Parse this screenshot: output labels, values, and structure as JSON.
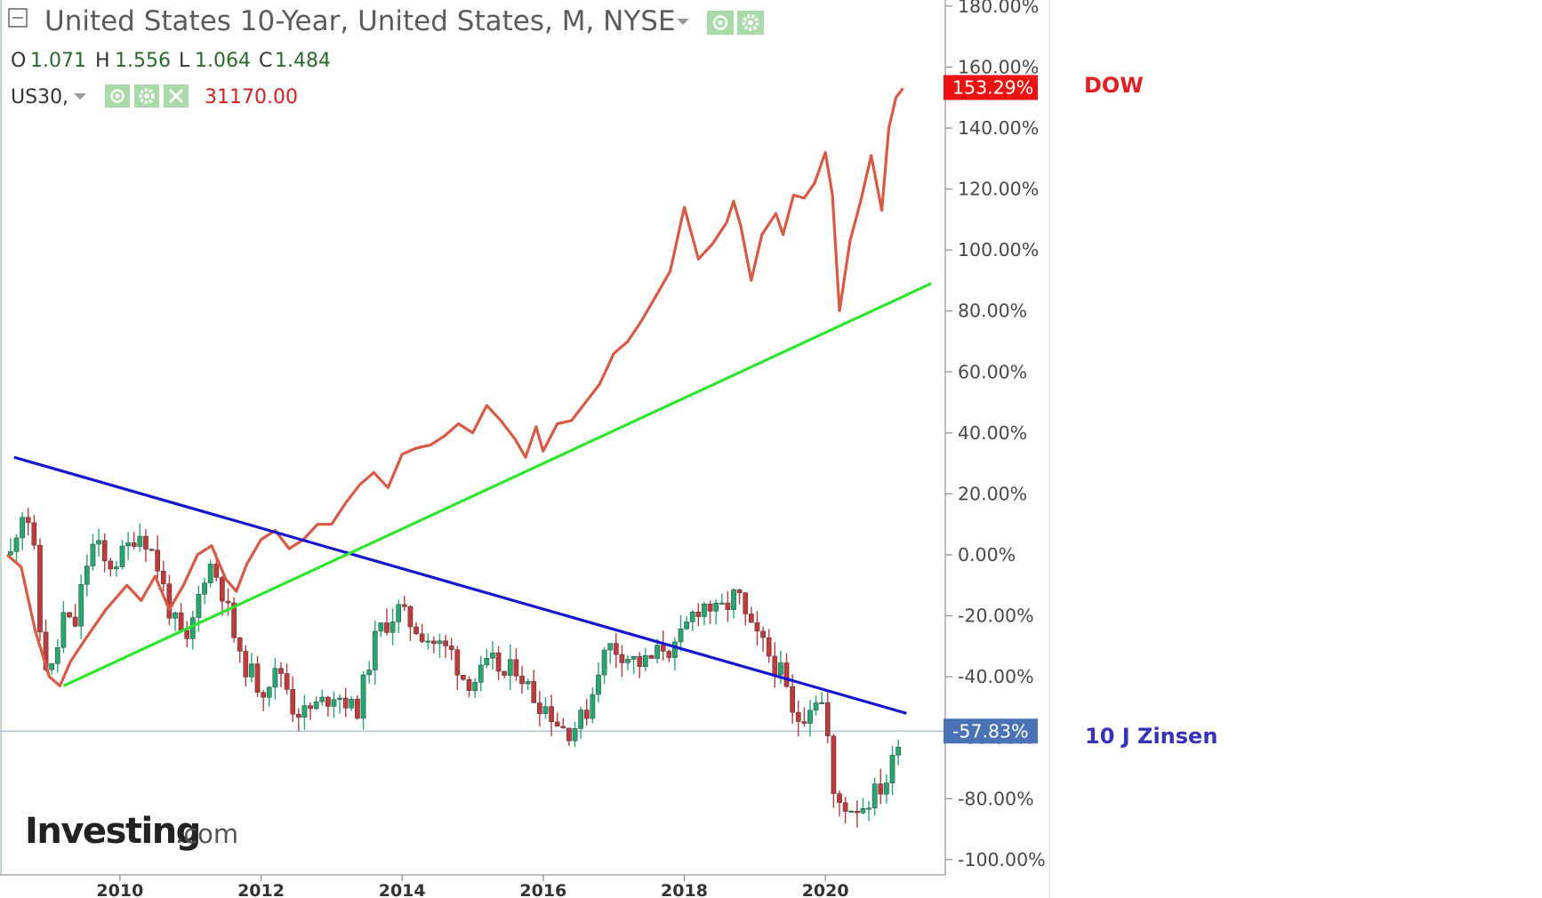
{
  "header": {
    "title": "United States 10-Year, United States, M, NYSE",
    "ohlc": [
      {
        "key": "O",
        "value": "1.071"
      },
      {
        "key": "H",
        "value": "1.556"
      },
      {
        "key": "L",
        "value": "1.064"
      },
      {
        "key": "C",
        "value": "1.484"
      }
    ],
    "overlay_symbol": "US30,",
    "overlay_value": "31170.00"
  },
  "annotations": {
    "dow_label": "DOW",
    "zinsen_label": "10 J Zinsen"
  },
  "logo": {
    "main": "Investing",
    "suffix": ".com"
  },
  "colors": {
    "dow_line": "#d85a44",
    "candle_up": "#24a870",
    "candle_down": "#c0393b",
    "trend_blue": "#1515d2",
    "trend_green": "#2be62b",
    "badge_red": "#ee1111",
    "badge_blue": "#4a73b6",
    "dow_label": "#e02020",
    "zinsen_label": "#3333bb"
  },
  "chart_data": {
    "type": "line",
    "ylabel": "",
    "ylim": [
      -105,
      182
    ],
    "yticks": [
      "180.00%",
      "160.00%",
      "140.00%",
      "120.00%",
      "100.00%",
      "80.00%",
      "60.00%",
      "40.00%",
      "20.00%",
      "0.00%",
      "-20.00%",
      "-40.00%",
      "-60.00%",
      "-80.00%",
      "-100.00%"
    ],
    "ytick_values": [
      180,
      160,
      140,
      120,
      100,
      80,
      60,
      40,
      20,
      0,
      -20,
      -40,
      -60,
      -80,
      -100
    ],
    "xlim": [
      2008.3,
      2021.7
    ],
    "xticks": [
      "2010",
      "2012",
      "2014",
      "2016",
      "2018",
      "2020"
    ],
    "xtick_values": [
      2010,
      2012,
      2014,
      2016,
      2018,
      2020
    ],
    "grid": false,
    "series": [
      {
        "name": "US30,",
        "kind": "line",
        "points": [
          [
            2008.4,
            0
          ],
          [
            2008.6,
            -4
          ],
          [
            2008.8,
            -25
          ],
          [
            2009.0,
            -40
          ],
          [
            2009.15,
            -43
          ],
          [
            2009.3,
            -35
          ],
          [
            2009.5,
            -28
          ],
          [
            2009.8,
            -18
          ],
          [
            2010.1,
            -10
          ],
          [
            2010.3,
            -15
          ],
          [
            2010.5,
            -7
          ],
          [
            2010.7,
            -18
          ],
          [
            2010.9,
            -10
          ],
          [
            2011.1,
            0
          ],
          [
            2011.3,
            3
          ],
          [
            2011.5,
            -8
          ],
          [
            2011.65,
            -12
          ],
          [
            2011.8,
            -3
          ],
          [
            2012.0,
            5
          ],
          [
            2012.2,
            8
          ],
          [
            2012.4,
            2
          ],
          [
            2012.6,
            5
          ],
          [
            2012.8,
            10
          ],
          [
            2013.0,
            10
          ],
          [
            2013.2,
            17
          ],
          [
            2013.4,
            23
          ],
          [
            2013.6,
            27
          ],
          [
            2013.8,
            22
          ],
          [
            2014.0,
            33
          ],
          [
            2014.2,
            35
          ],
          [
            2014.4,
            36
          ],
          [
            2014.6,
            39
          ],
          [
            2014.8,
            43
          ],
          [
            2015.0,
            40
          ],
          [
            2015.2,
            49
          ],
          [
            2015.4,
            44
          ],
          [
            2015.6,
            38
          ],
          [
            2015.75,
            32
          ],
          [
            2015.9,
            42
          ],
          [
            2016.0,
            34
          ],
          [
            2016.2,
            43
          ],
          [
            2016.4,
            44
          ],
          [
            2016.6,
            50
          ],
          [
            2016.8,
            56
          ],
          [
            2017.0,
            66
          ],
          [
            2017.2,
            70
          ],
          [
            2017.4,
            77
          ],
          [
            2017.6,
            85
          ],
          [
            2017.8,
            93
          ],
          [
            2018.0,
            114
          ],
          [
            2018.2,
            97
          ],
          [
            2018.4,
            102
          ],
          [
            2018.6,
            109
          ],
          [
            2018.7,
            116
          ],
          [
            2018.8,
            108
          ],
          [
            2018.95,
            90
          ],
          [
            2019.1,
            105
          ],
          [
            2019.3,
            112
          ],
          [
            2019.4,
            105
          ],
          [
            2019.55,
            118
          ],
          [
            2019.7,
            117
          ],
          [
            2019.85,
            122
          ],
          [
            2020.0,
            132
          ],
          [
            2020.1,
            118
          ],
          [
            2020.2,
            80
          ],
          [
            2020.35,
            103
          ],
          [
            2020.5,
            116
          ],
          [
            2020.65,
            131
          ],
          [
            2020.8,
            113
          ],
          [
            2020.9,
            140
          ],
          [
            2021.0,
            150
          ],
          [
            2021.1,
            153
          ]
        ],
        "last_label": "153.29%"
      },
      {
        "name": "United States 10-Year, United States, M, NYSE",
        "kind": "candlestick",
        "points": [
          [
            2008.45,
            0
          ],
          [
            2008.6,
            15
          ],
          [
            2008.75,
            10
          ],
          [
            2008.9,
            -35
          ],
          [
            2009.05,
            -38
          ],
          [
            2009.2,
            -20
          ],
          [
            2009.35,
            -25
          ],
          [
            2009.5,
            -5
          ],
          [
            2009.65,
            5
          ],
          [
            2009.8,
            -4
          ],
          [
            2009.95,
            -2
          ],
          [
            2010.1,
            2
          ],
          [
            2010.25,
            8
          ],
          [
            2010.4,
            4
          ],
          [
            2010.55,
            -5
          ],
          [
            2010.7,
            -18
          ],
          [
            2010.85,
            -26
          ],
          [
            2010.95,
            -30
          ],
          [
            2011.1,
            -15
          ],
          [
            2011.25,
            -2
          ],
          [
            2011.4,
            -8
          ],
          [
            2011.55,
            -20
          ],
          [
            2011.7,
            -35
          ],
          [
            2011.85,
            -38
          ],
          [
            2012.0,
            -45
          ],
          [
            2012.15,
            -40
          ],
          [
            2012.3,
            -38
          ],
          [
            2012.45,
            -50
          ],
          [
            2012.6,
            -52
          ],
          [
            2012.75,
            -50
          ],
          [
            2012.9,
            -48
          ],
          [
            2013.05,
            -45
          ],
          [
            2013.2,
            -48
          ],
          [
            2013.35,
            -52
          ],
          [
            2013.5,
            -38
          ],
          [
            2013.65,
            -25
          ],
          [
            2013.8,
            -22
          ],
          [
            2013.95,
            -18
          ],
          [
            2014.1,
            -22
          ],
          [
            2014.25,
            -25
          ],
          [
            2014.4,
            -28
          ],
          [
            2014.55,
            -30
          ],
          [
            2014.7,
            -32
          ],
          [
            2014.85,
            -40
          ],
          [
            2015.0,
            -42
          ],
          [
            2015.15,
            -38
          ],
          [
            2015.3,
            -35
          ],
          [
            2015.45,
            -40
          ],
          [
            2015.6,
            -36
          ],
          [
            2015.75,
            -42
          ],
          [
            2015.9,
            -48
          ],
          [
            2016.05,
            -50
          ],
          [
            2016.2,
            -55
          ],
          [
            2016.35,
            -58
          ],
          [
            2016.5,
            -55
          ],
          [
            2016.65,
            -50
          ],
          [
            2016.8,
            -35
          ],
          [
            2016.95,
            -30
          ],
          [
            2017.1,
            -32
          ],
          [
            2017.25,
            -34
          ],
          [
            2017.4,
            -36
          ],
          [
            2017.55,
            -34
          ],
          [
            2017.7,
            -30
          ],
          [
            2017.85,
            -32
          ],
          [
            2018.0,
            -25
          ],
          [
            2018.15,
            -18
          ],
          [
            2018.3,
            -16
          ],
          [
            2018.45,
            -19
          ],
          [
            2018.6,
            -17
          ],
          [
            2018.75,
            -12
          ],
          [
            2018.85,
            -20
          ],
          [
            2018.95,
            -25
          ],
          [
            2019.1,
            -29
          ],
          [
            2019.25,
            -35
          ],
          [
            2019.4,
            -40
          ],
          [
            2019.55,
            -55
          ],
          [
            2019.7,
            -52
          ],
          [
            2019.85,
            -46
          ],
          [
            2020.0,
            -50
          ],
          [
            2020.1,
            -80
          ],
          [
            2020.25,
            -82
          ],
          [
            2020.4,
            -83
          ],
          [
            2020.55,
            -82
          ],
          [
            2020.7,
            -78
          ],
          [
            2020.85,
            -75
          ],
          [
            2020.95,
            -68
          ],
          [
            2021.05,
            -58
          ]
        ],
        "last_label": "-57.83%"
      }
    ],
    "trendlines": [
      {
        "name": "blue-resistance",
        "from": [
          2008.5,
          32
        ],
        "to": [
          2021.15,
          -52
        ]
      },
      {
        "name": "green-support",
        "from": [
          2009.2,
          -43
        ],
        "to": [
          2021.5,
          89
        ]
      }
    ],
    "reference_line": {
      "y": -57.83
    }
  }
}
